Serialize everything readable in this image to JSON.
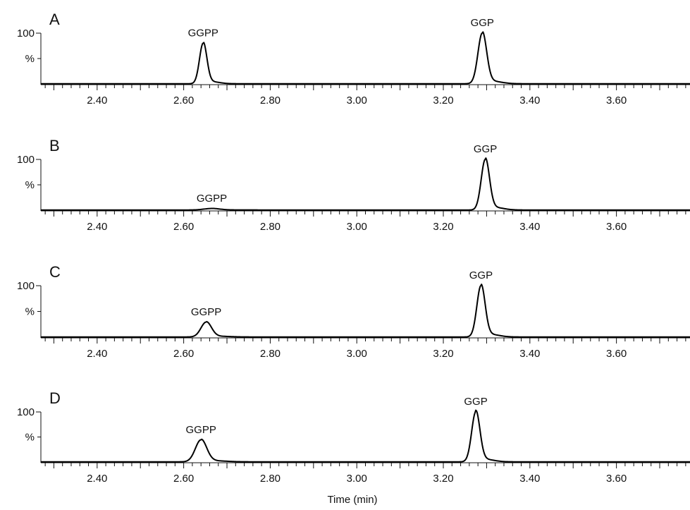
{
  "chart_data": [
    {
      "type": "line",
      "panel_label": "A",
      "y_axis_labels": [
        "100",
        "%"
      ],
      "x_ticks": [
        "2.40",
        "2.60",
        "2.80",
        "3.00",
        "3.20",
        "3.40",
        "3.60"
      ],
      "xlim": [
        2.27,
        3.77
      ],
      "ylim": [
        0,
        100
      ],
      "peaks": [
        {
          "label": "GGPP",
          "rt": 2.645,
          "height": 80,
          "width": 0.0085
        },
        {
          "label": "GGP",
          "rt": 3.29,
          "height": 100,
          "width": 0.01
        }
      ]
    },
    {
      "type": "line",
      "panel_label": "B",
      "y_axis_labels": [
        "100",
        "%"
      ],
      "x_ticks": [
        "2.40",
        "2.60",
        "2.80",
        "3.00",
        "3.20",
        "3.40",
        "3.60"
      ],
      "xlim": [
        2.27,
        3.77
      ],
      "ylim": [
        0,
        100
      ],
      "peaks": [
        {
          "label": "GGPP",
          "rt": 2.665,
          "height": 3,
          "width": 0.018
        },
        {
          "label": "GGP",
          "rt": 3.297,
          "height": 100,
          "width": 0.0095
        }
      ]
    },
    {
      "type": "line",
      "panel_label": "C",
      "y_axis_labels": [
        "100",
        "%"
      ],
      "x_ticks": [
        "2.40",
        "2.60",
        "2.80",
        "3.00",
        "3.20",
        "3.40",
        "3.60"
      ],
      "xlim": [
        2.27,
        3.77
      ],
      "ylim": [
        0,
        100
      ],
      "peaks": [
        {
          "label": "GGPP",
          "rt": 2.652,
          "height": 29,
          "width": 0.012
        },
        {
          "label": "GGP",
          "rt": 3.287,
          "height": 100,
          "width": 0.0095
        }
      ]
    },
    {
      "type": "line",
      "panel_label": "D",
      "y_axis_labels": [
        "100",
        "%"
      ],
      "x_ticks": [
        "2.40",
        "2.60",
        "2.80",
        "3.00",
        "3.20",
        "3.40",
        "3.60"
      ],
      "xlim": [
        2.27,
        3.77
      ],
      "ylim": [
        0,
        100
      ],
      "peaks": [
        {
          "label": "GGPP",
          "rt": 2.64,
          "height": 44,
          "width": 0.013
        },
        {
          "label": "GGP",
          "rt": 3.275,
          "height": 100,
          "width": 0.0095
        }
      ]
    }
  ],
  "xlabel": "Time (min)"
}
